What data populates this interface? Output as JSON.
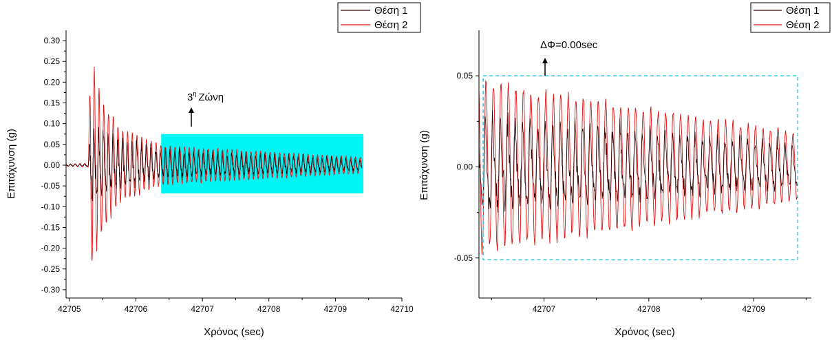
{
  "colors": {
    "series1": "#2b0000",
    "series2": "#e01010",
    "zone_fill": "#00f5f5",
    "box_stroke": "#33c9e6"
  },
  "chart_data": [
    {
      "type": "line",
      "xlabel": "Χρόνος (sec)",
      "ylabel": "Επιτάχυνση (g)",
      "xlim": [
        42704.95,
        42710
      ],
      "ylim": [
        -0.32,
        0.325
      ],
      "xticks": [
        "42705",
        "42706",
        "42707",
        "42708",
        "42709",
        "42710"
      ],
      "xtick_values": [
        42705,
        42706,
        42707,
        42708,
        42709,
        42710
      ],
      "yticks": [
        "0.30",
        "0.25",
        "0.20",
        "0.15",
        "0.10",
        "0.05",
        "0.00",
        "-0.05",
        "-0.10",
        "-0.15",
        "-0.20",
        "-0.25",
        "-0.30"
      ],
      "ytick_values": [
        0.3,
        0.25,
        0.2,
        0.15,
        0.1,
        0.05,
        0.0,
        -0.05,
        -0.1,
        -0.15,
        -0.2,
        -0.25,
        -0.3
      ],
      "legend": {
        "position": "top-right",
        "entries": [
          "Θέση 1",
          "Θέση 2"
        ]
      },
      "series": [
        {
          "name": "Θέση 1",
          "color": "#2b0000",
          "envelope": [
            [
              42704.95,
              0.003
            ],
            [
              42705.28,
              0.004
            ],
            [
              42705.32,
              0.12
            ],
            [
              42705.6,
              0.09
            ],
            [
              42706.4,
              0.045
            ],
            [
              42709.4,
              0.018
            ]
          ],
          "frequency_hz": 14
        },
        {
          "name": "Θέση 2",
          "color": "#e01010",
          "envelope": [
            [
              42704.95,
              0.003
            ],
            [
              42705.28,
              0.005
            ],
            [
              42705.32,
              0.28
            ],
            [
              42705.5,
              0.16
            ],
            [
              42705.8,
              0.09
            ],
            [
              42706.4,
              0.05
            ],
            [
              42709.4,
              0.02
            ]
          ],
          "frequency_hz": 14
        }
      ],
      "annotations": {
        "zone_label": "Ζώνη",
        "zone_number": "3",
        "zone_sup": "η",
        "zone_rect": {
          "x0": 42706.38,
          "x1": 42709.42,
          "y0": -0.068,
          "y1": 0.075
        }
      }
    },
    {
      "type": "line",
      "xlabel": "Χρόνος (sec)",
      "ylabel": "Επιτάχυνση (g)",
      "xlim": [
        42706.38,
        42709.55
      ],
      "ylim": [
        -0.072,
        0.075
      ],
      "xticks": [
        "42707",
        "42708",
        "42709"
      ],
      "xtick_values": [
        42707,
        42708,
        42709
      ],
      "yticks": [
        "0.05",
        "0.00",
        "-0.05"
      ],
      "ytick_values": [
        0.05,
        0.0,
        -0.05
      ],
      "legend": {
        "position": "top-right",
        "entries": [
          "Θέση 1",
          "Θέση 2"
        ]
      },
      "series": [
        {
          "name": "Θέση 1",
          "color": "#2b0000",
          "envelope": [
            [
              42706.38,
              0.035
            ],
            [
              42709.42,
              0.016
            ]
          ],
          "frequency_hz": 14
        },
        {
          "name": "Θέση 2",
          "color": "#e01010",
          "envelope": [
            [
              42706.38,
              0.05
            ],
            [
              42709.42,
              0.02
            ]
          ],
          "frequency_hz": 14
        }
      ],
      "annotations": {
        "phase_label": "ΔΦ=0.00sec",
        "box": {
          "x0": 42706.42,
          "x1": 42709.42,
          "y0": -0.051,
          "y1": 0.05
        }
      }
    }
  ]
}
